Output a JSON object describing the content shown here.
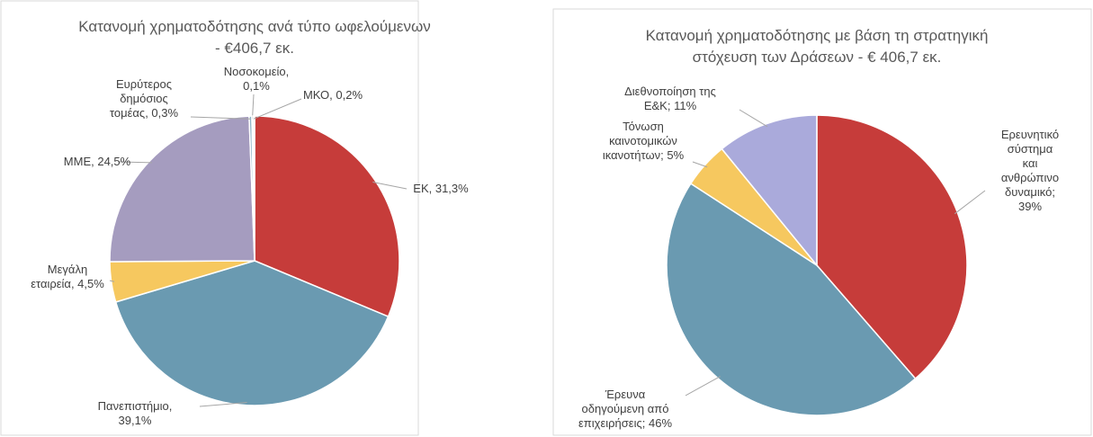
{
  "chart_data": [
    {
      "type": "pie",
      "title": "Κατανομή χρηματοδότησης ανά τύπο ωφελούμενων\n- €406,7 εκ.",
      "values": [
        31.3,
        39.1,
        4.5,
        24.5,
        0.3,
        0.1,
        0.2
      ],
      "value_labels": [
        "ΕΚ, 31,3%",
        "Πανεπιστήμιο,\n39,1%",
        "Μεγάλη\nεταιρεία, 4,5%",
        "ΜΜΕ, 24,5%",
        "Ευρύτερος\nδημόσιος\nτομέας, 0,3%",
        "Νοσοκομείο,\n0,1%",
        "ΜΚΟ, 0,2%"
      ],
      "colors": [
        "#c63c3a",
        "#6a9ab1",
        "#f6c85f",
        "#a59cbf",
        "#8db3c7",
        "#d9d9d9",
        "#e8e8e8"
      ]
    },
    {
      "type": "pie",
      "title": "Κατανομή χρηματοδότησης με βάση τη στρατηγική\nστόχευση των Δράσεων - € 406,7 εκ.",
      "values": [
        39,
        46,
        5,
        11
      ],
      "value_labels": [
        "Ερευνητικό σύστημα\nκαι ανθρώπινο\nδυναμικό; 39%",
        "Έρευνα\nοδηγούμενη από\nεπιχειρήσεις; 46%",
        "Τόνωση\nκαινοτομικών\nικανοτήτων; 5%",
        "Διεθνοποίηση της\nΕ&Κ; 11%"
      ],
      "colors": [
        "#c63c3a",
        "#6a9ab1",
        "#f6c85f",
        "#aaaadb"
      ]
    }
  ]
}
